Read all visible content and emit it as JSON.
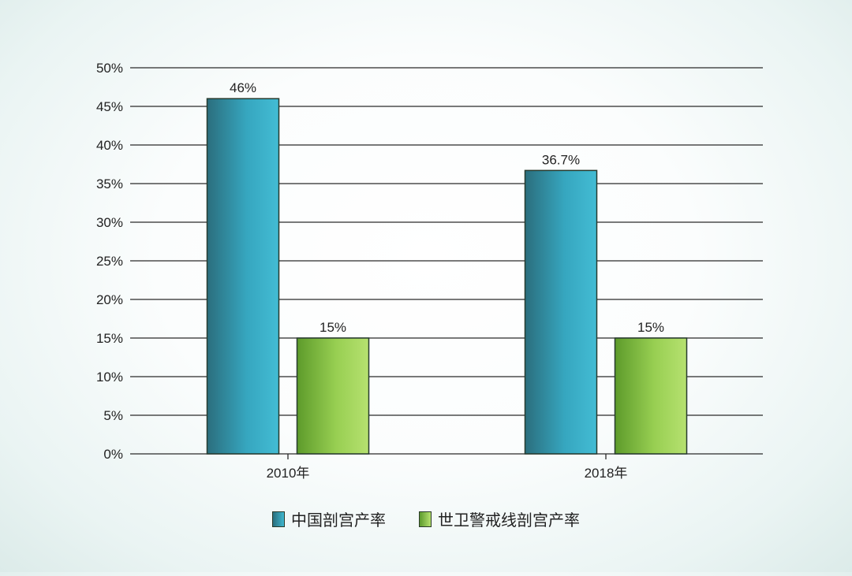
{
  "chart_data": {
    "type": "bar",
    "title": "",
    "xlabel": "",
    "ylabel": "",
    "categories": [
      "2010年",
      "2018年"
    ],
    "series": [
      {
        "name": "中国剖宫产率",
        "values": [
          46,
          36.7
        ],
        "labels": [
          "46%",
          "36.7%"
        ],
        "color": "#3ab3cb"
      },
      {
        "name": "世卫警戒线剖宫产率",
        "values": [
          15,
          15
        ],
        "labels": [
          "15%",
          "15%"
        ],
        "color": "#8cc84a"
      }
    ],
    "y_ticks": [
      "0%",
      "5%",
      "10%",
      "15%",
      "20%",
      "25%",
      "30%",
      "35%",
      "40%",
      "45%",
      "50%"
    ],
    "ylim": [
      0,
      50
    ],
    "grid": true,
    "legend_position": "bottom-center"
  }
}
